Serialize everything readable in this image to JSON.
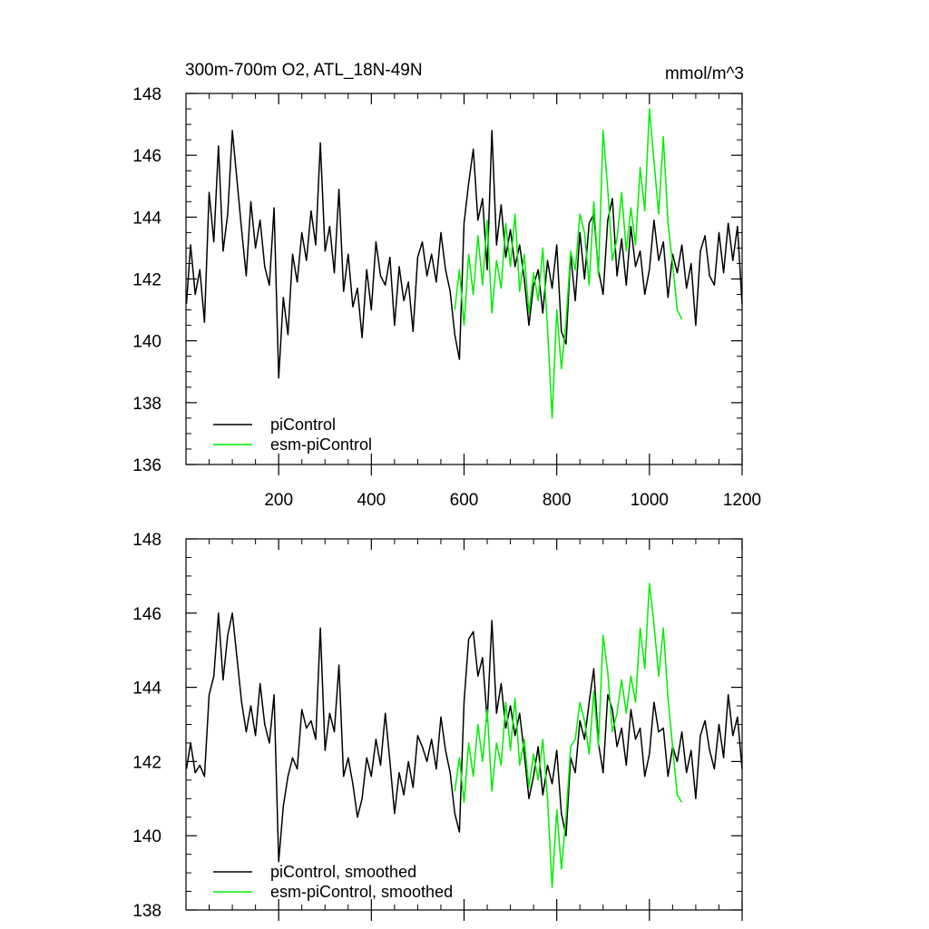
{
  "colors": {
    "picontrol": "#000000",
    "esm_picontrol": "#00ee00",
    "frame": "#000000"
  },
  "chart_data": [
    {
      "type": "line",
      "title": "300m-700m O2, ATL_18N-49N",
      "units": "mmol/m^3",
      "xlabel": "",
      "ylabel": "",
      "xlim": [
        0,
        1200
      ],
      "ylim": [
        136,
        148
      ],
      "xticks": [
        200,
        400,
        600,
        800,
        1000,
        1200
      ],
      "xtick_labels": [
        "200",
        "400",
        "600",
        "800",
        "1000",
        "1200"
      ],
      "yticks": [
        136,
        138,
        140,
        142,
        144,
        146,
        148
      ],
      "ytick_labels": [
        "136",
        "138",
        "140",
        "142",
        "144",
        "146",
        "148"
      ],
      "legend_position": "bottom-left",
      "series": [
        {
          "name": "piControl",
          "color": "#000000",
          "x": [
            1,
            10,
            20,
            30,
            40,
            50,
            60,
            70,
            80,
            90,
            100,
            110,
            120,
            130,
            140,
            150,
            160,
            170,
            180,
            190,
            200,
            210,
            220,
            230,
            240,
            250,
            260,
            270,
            280,
            290,
            300,
            310,
            320,
            330,
            340,
            350,
            360,
            370,
            380,
            390,
            400,
            410,
            420,
            430,
            440,
            450,
            460,
            470,
            480,
            490,
            500,
            510,
            520,
            530,
            540,
            550,
            560,
            570,
            580,
            590,
            600,
            610,
            620,
            630,
            640,
            650,
            660,
            670,
            680,
            690,
            700,
            710,
            720,
            730,
            740,
            750,
            760,
            770,
            780,
            790,
            800,
            810,
            820,
            830,
            840,
            850,
            860,
            870,
            880,
            890,
            900,
            910,
            920,
            930,
            940,
            950,
            960,
            970,
            980,
            990,
            1000,
            1010,
            1020,
            1030,
            1040,
            1050,
            1060,
            1070,
            1080,
            1090,
            1100,
            1110,
            1120,
            1130,
            1140,
            1150,
            1160,
            1170,
            1180,
            1190,
            1200
          ],
          "y": [
            141.2,
            143.1,
            141.5,
            142.3,
            140.6,
            144.8,
            143.2,
            146.3,
            142.9,
            144.1,
            146.8,
            145.2,
            143.6,
            142.1,
            144.5,
            143.0,
            143.9,
            142.4,
            141.8,
            144.3,
            138.8,
            141.4,
            140.2,
            142.8,
            141.9,
            143.5,
            142.6,
            144.2,
            143.1,
            146.4,
            142.9,
            143.7,
            142.2,
            144.9,
            141.6,
            142.8,
            141.1,
            141.7,
            140.1,
            142.3,
            141.0,
            143.2,
            142.1,
            141.8,
            142.7,
            140.5,
            142.4,
            141.3,
            141.9,
            140.3,
            142.7,
            143.2,
            142.1,
            142.8,
            141.9,
            143.5,
            142.3,
            141.6,
            140.2,
            139.4,
            143.8,
            145.1,
            146.2,
            143.9,
            144.6,
            142.3,
            146.8,
            143.1,
            144.4,
            142.7,
            143.6,
            142.4,
            143.1,
            142.0,
            140.5,
            141.8,
            142.3,
            140.9,
            142.6,
            141.7,
            143.1,
            140.3,
            139.9,
            142.8,
            141.3,
            143.5,
            142.0,
            143.8,
            144.1,
            142.3,
            141.5,
            143.9,
            144.6,
            142.1,
            143.3,
            141.8,
            143.7,
            142.4,
            142.9,
            141.5,
            142.3,
            143.9,
            142.6,
            143.2,
            141.4,
            142.8,
            142.2,
            143.1,
            141.7,
            142.5,
            140.5,
            142.9,
            143.4,
            142.1,
            141.8,
            143.5,
            142.2,
            143.8,
            142.6,
            143.7,
            141.2
          ]
        },
        {
          "name": "esm-piControl",
          "color": "#00ee00",
          "x": [
            580,
            590,
            600,
            610,
            620,
            630,
            640,
            650,
            660,
            670,
            680,
            690,
            700,
            710,
            720,
            730,
            740,
            750,
            760,
            770,
            780,
            790,
            800,
            810,
            820,
            830,
            840,
            850,
            860,
            870,
            880,
            890,
            900,
            910,
            920,
            930,
            940,
            950,
            960,
            970,
            980,
            990,
            1000,
            1010,
            1020,
            1030,
            1040,
            1050,
            1060,
            1070
          ],
          "y": [
            141.0,
            142.3,
            140.5,
            142.8,
            141.5,
            143.4,
            141.8,
            143.9,
            140.9,
            142.6,
            141.7,
            143.8,
            142.4,
            144.1,
            141.6,
            142.8,
            140.9,
            142.2,
            141.3,
            143.0,
            140.4,
            137.5,
            141.0,
            139.1,
            140.6,
            142.9,
            142.3,
            144.1,
            143.5,
            141.8,
            144.5,
            142.1,
            146.8,
            144.9,
            142.6,
            143.3,
            144.8,
            142.9,
            144.3,
            143.1,
            145.6,
            144.2,
            147.5,
            145.8,
            144.1,
            146.6,
            143.8,
            142.5,
            141.0,
            140.7
          ]
        }
      ]
    },
    {
      "type": "line",
      "title": "",
      "units": "",
      "xlabel": "",
      "ylabel": "",
      "xlim": [
        0,
        1200
      ],
      "ylim": [
        138,
        148
      ],
      "xticks": [
        200,
        400,
        600,
        800,
        1000,
        1200
      ],
      "yticks": [
        138,
        140,
        142,
        144,
        146,
        148
      ],
      "ytick_labels": [
        "138",
        "140",
        "142",
        "144",
        "146",
        "148"
      ],
      "legend_position": "bottom-left",
      "series": [
        {
          "name": "piControl, smoothed",
          "color": "#000000",
          "x": [
            1,
            10,
            20,
            30,
            40,
            50,
            60,
            70,
            80,
            90,
            100,
            110,
            120,
            130,
            140,
            150,
            160,
            170,
            180,
            190,
            200,
            210,
            220,
            230,
            240,
            250,
            260,
            270,
            280,
            290,
            300,
            310,
            320,
            330,
            340,
            350,
            360,
            370,
            380,
            390,
            400,
            410,
            420,
            430,
            440,
            450,
            460,
            470,
            480,
            490,
            500,
            510,
            520,
            530,
            540,
            550,
            560,
            570,
            580,
            590,
            600,
            610,
            620,
            630,
            640,
            650,
            660,
            670,
            680,
            690,
            700,
            710,
            720,
            730,
            740,
            750,
            760,
            770,
            780,
            790,
            800,
            810,
            820,
            830,
            840,
            850,
            860,
            870,
            880,
            890,
            900,
            910,
            920,
            930,
            940,
            950,
            960,
            970,
            980,
            990,
            1000,
            1010,
            1020,
            1030,
            1040,
            1050,
            1060,
            1070,
            1080,
            1090,
            1100,
            1110,
            1120,
            1130,
            1140,
            1150,
            1160,
            1170,
            1180,
            1190,
            1200
          ],
          "y": [
            141.8,
            142.5,
            141.7,
            141.9,
            141.6,
            143.8,
            144.3,
            146.0,
            144.2,
            145.4,
            146.0,
            144.8,
            143.6,
            142.8,
            143.5,
            142.7,
            144.1,
            143.0,
            142.5,
            143.8,
            139.3,
            140.8,
            141.6,
            142.1,
            141.8,
            143.4,
            142.9,
            143.1,
            142.6,
            145.6,
            142.3,
            143.3,
            142.8,
            144.6,
            141.6,
            142.1,
            141.4,
            140.5,
            141.0,
            142.1,
            141.6,
            142.6,
            141.9,
            143.3,
            142.0,
            140.6,
            141.7,
            141.1,
            142.0,
            141.3,
            142.7,
            142.4,
            142.0,
            142.6,
            141.8,
            143.2,
            142.3,
            141.7,
            140.6,
            140.1,
            143.6,
            145.3,
            145.5,
            144.3,
            144.8,
            143.1,
            145.8,
            143.3,
            144.1,
            142.9,
            143.5,
            142.7,
            143.3,
            142.2,
            141.0,
            141.6,
            142.4,
            141.1,
            141.9,
            141.4,
            142.3,
            140.6,
            140.0,
            142.1,
            141.7,
            143.1,
            142.6,
            143.6,
            144.5,
            142.5,
            141.7,
            143.8,
            143.4,
            142.4,
            142.9,
            141.9,
            143.4,
            142.6,
            142.9,
            141.6,
            142.2,
            143.6,
            142.8,
            142.9,
            141.6,
            142.4,
            142.0,
            142.8,
            141.7,
            142.3,
            141.0,
            142.7,
            143.1,
            142.3,
            141.8,
            143.0,
            142.1,
            143.8,
            142.7,
            143.2,
            141.8
          ]
        },
        {
          "name": "esm-piControl, smoothed",
          "color": "#00ee00",
          "x": [
            580,
            590,
            600,
            610,
            620,
            630,
            640,
            650,
            660,
            670,
            680,
            690,
            700,
            710,
            720,
            730,
            740,
            750,
            760,
            770,
            780,
            790,
            800,
            810,
            820,
            830,
            840,
            850,
            860,
            870,
            880,
            890,
            900,
            910,
            920,
            930,
            940,
            950,
            960,
            970,
            980,
            990,
            1000,
            1010,
            1020,
            1030,
            1040,
            1050,
            1060,
            1070
          ],
          "y": [
            141.2,
            142.1,
            140.9,
            142.5,
            141.6,
            143.0,
            142.0,
            143.4,
            141.2,
            142.5,
            141.9,
            143.6,
            142.3,
            143.7,
            141.9,
            142.6,
            141.3,
            142.2,
            141.5,
            142.6,
            141.0,
            138.6,
            140.7,
            139.1,
            140.5,
            142.4,
            142.6,
            143.6,
            143.1,
            142.2,
            143.9,
            142.4,
            145.4,
            144.4,
            142.8,
            143.3,
            144.2,
            143.3,
            144.3,
            143.6,
            145.6,
            144.5,
            146.8,
            145.7,
            144.3,
            145.6,
            143.7,
            142.4,
            141.1,
            140.9
          ]
        }
      ]
    }
  ]
}
